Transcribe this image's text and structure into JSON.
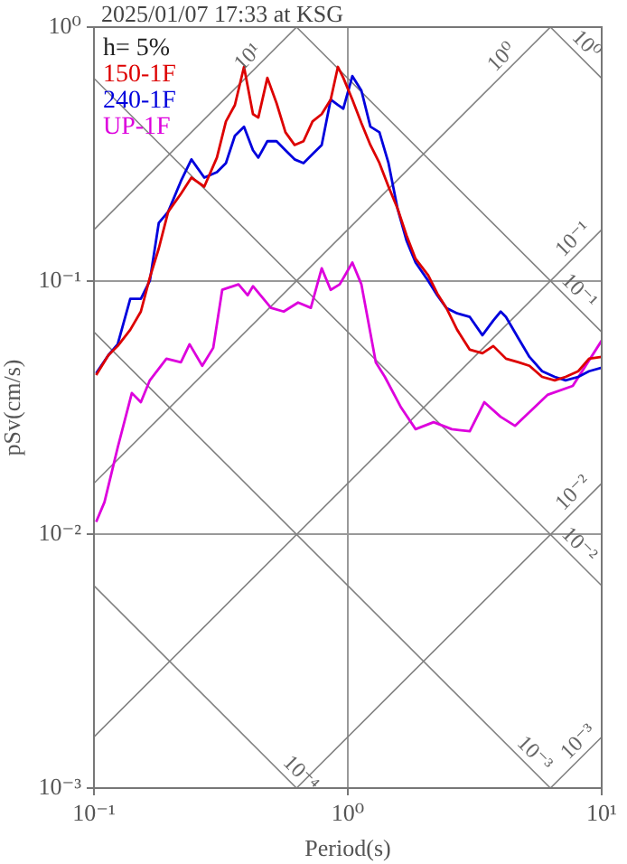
{
  "chart_data": {
    "type": "line",
    "title": "2025/01/07 17:33 at KSG",
    "xlabel": "Period(s)",
    "ylabel": "pSv(cm/s)",
    "log": "xy",
    "grid": true,
    "legend": "top left",
    "xlim": [
      0.1,
      10
    ],
    "ylim": [
      0.001,
      1
    ],
    "xticks": [
      {
        "value": 0.1,
        "label": "10⁻¹"
      },
      {
        "value": 1,
        "label": "10⁰"
      },
      {
        "value": 10,
        "label": "10¹"
      }
    ],
    "yticks": [
      {
        "value": 0.001,
        "label": "10⁻³"
      },
      {
        "value": 0.01,
        "label": "10⁻²"
      },
      {
        "value": 0.1,
        "label": "10⁻¹"
      },
      {
        "value": 1,
        "label": "10⁰"
      }
    ],
    "annotations": [
      "h= 5%",
      {
        "text": "10¹",
        "x": 0.44,
        "y": 0.7
      },
      {
        "text": "10⁰",
        "x": 4.4,
        "y": 0.7
      },
      {
        "text": "10⁰",
        "x": 8.0,
        "y": 0.785
      },
      {
        "text": "10⁻¹",
        "x": 8.4,
        "y": 0.134
      },
      {
        "text": "10⁻¹",
        "x": 7.5,
        "y": 0.0837
      },
      {
        "text": "10⁻²",
        "x": 8.4,
        "y": 0.0134
      },
      {
        "text": "10⁻²",
        "x": 7.5,
        "y": 0.00837
      },
      {
        "text": "10⁻³",
        "x": 8.8,
        "y": 0.0014
      },
      {
        "text": "10⁻³",
        "x": 5.0,
        "y": 0.001256
      },
      {
        "text": "10⁻⁴",
        "x": 0.6,
        "y": 0.00105
      }
    ],
    "series": [
      {
        "name": "150-1F",
        "color": "#dd0000",
        "x": [
          0.102,
          0.114,
          0.124,
          0.139,
          0.153,
          0.166,
          0.18,
          0.196,
          0.22,
          0.242,
          0.272,
          0.305,
          0.331,
          0.359,
          0.39,
          0.423,
          0.444,
          0.482,
          0.524,
          0.568,
          0.617,
          0.669,
          0.726,
          0.789,
          0.856,
          0.914,
          0.96,
          1.042,
          1.131,
          1.227,
          1.332,
          1.446,
          1.569,
          1.703,
          1.849,
          2.073,
          2.25,
          2.443,
          2.695,
          3.023,
          3.39,
          3.741,
          4.197,
          4.707,
          5.193,
          5.825,
          6.531,
          7.206,
          8.083,
          8.917,
          10
        ],
        "values": [
          0.0425,
          0.0509,
          0.0553,
          0.0641,
          0.0756,
          0.103,
          0.134,
          0.187,
          0.22,
          0.255,
          0.235,
          0.306,
          0.425,
          0.493,
          0.697,
          0.454,
          0.44,
          0.631,
          0.501,
          0.385,
          0.343,
          0.355,
          0.425,
          0.454,
          0.518,
          0.697,
          0.631,
          0.518,
          0.418,
          0.343,
          0.291,
          0.235,
          0.193,
          0.151,
          0.122,
          0.105,
          0.0891,
          0.0782,
          0.0641,
          0.0535,
          0.0518,
          0.0553,
          0.0493,
          0.0477,
          0.0462,
          0.0418,
          0.0405,
          0.0418,
          0.044,
          0.0493,
          0.0501
        ]
      },
      {
        "name": "240-1F",
        "color": "#0000dd",
        "x": [
          0.102,
          0.114,
          0.124,
          0.139,
          0.153,
          0.166,
          0.18,
          0.196,
          0.22,
          0.242,
          0.272,
          0.305,
          0.331,
          0.359,
          0.39,
          0.423,
          0.444,
          0.482,
          0.524,
          0.568,
          0.617,
          0.669,
          0.726,
          0.789,
          0.856,
          0.914,
          0.96,
          1.042,
          1.131,
          1.227,
          1.332,
          1.446,
          1.569,
          1.703,
          1.849,
          2.073,
          2.25,
          2.443,
          2.695,
          3.023,
          3.39,
          3.741,
          4.0,
          4.197,
          4.707,
          5.193,
          5.825,
          6.531,
          7.206,
          8.083,
          8.917,
          10
        ],
        "values": [
          0.0432,
          0.0509,
          0.0562,
          0.0849,
          0.0849,
          0.1,
          0.169,
          0.187,
          0.247,
          0.301,
          0.255,
          0.268,
          0.291,
          0.373,
          0.405,
          0.327,
          0.306,
          0.355,
          0.355,
          0.327,
          0.301,
          0.291,
          0.316,
          0.343,
          0.518,
          0.493,
          0.477,
          0.641,
          0.562,
          0.405,
          0.385,
          0.291,
          0.193,
          0.144,
          0.118,
          0.1,
          0.0877,
          0.0782,
          0.0744,
          0.072,
          0.061,
          0.0697,
          0.0756,
          0.072,
          0.0591,
          0.0501,
          0.044,
          0.0418,
          0.0405,
          0.0418,
          0.044,
          0.0454
        ]
      },
      {
        "name": "UP-1F",
        "color": "#dd00dd",
        "x": [
          0.102,
          0.11,
          0.124,
          0.141,
          0.153,
          0.166,
          0.193,
          0.22,
          0.238,
          0.267,
          0.295,
          0.32,
          0.371,
          0.403,
          0.423,
          0.498,
          0.559,
          0.637,
          0.715,
          0.789,
          0.856,
          0.929,
          1.042,
          1.131,
          1.289,
          1.399,
          1.622,
          1.849,
          2.178,
          2.567,
          3.023,
          3.447,
          3.995,
          4.554,
          6.116,
          7.692,
          10
        ],
        "values": [
          0.0112,
          0.0134,
          0.022,
          0.0361,
          0.0332,
          0.0405,
          0.0493,
          0.0477,
          0.0562,
          0.0462,
          0.0544,
          0.0921,
          0.0968,
          0.0877,
          0.0952,
          0.0782,
          0.0756,
          0.0821,
          0.0782,
          0.112,
          0.0921,
          0.0968,
          0.118,
          0.0968,
          0.0477,
          0.0418,
          0.0316,
          0.026,
          0.0277,
          0.026,
          0.0255,
          0.0332,
          0.0291,
          0.0268,
          0.0355,
          0.0385,
          0.0581
        ]
      },
      {
        "color": "#808080",
        "x": [
          0.1,
          0.628
        ],
        "values": [
          0.159,
          1
        ]
      },
      {
        "color": "#808080",
        "x": [
          0.1,
          6.28
        ],
        "values": [
          0.0159,
          1
        ]
      },
      {
        "color": "#808080",
        "x": [
          0.1,
          10
        ],
        "values": [
          0.00159,
          0.159
        ]
      },
      {
        "color": "#808080",
        "x": [
          0.628,
          10
        ],
        "values": [
          0.001,
          0.0159
        ]
      },
      {
        "color": "#808080",
        "x": [
          6.28,
          10
        ],
        "values": [
          0.001,
          0.00159
        ]
      },
      {
        "color": "#808080",
        "x": [
          6.28,
          10
        ],
        "values": [
          1,
          0.628
        ]
      },
      {
        "color": "#808080",
        "x": [
          0.628,
          10
        ],
        "values": [
          1,
          0.0628
        ]
      },
      {
        "color": "#808080",
        "x": [
          0.1,
          10
        ],
        "values": [
          0.628,
          0.00628
        ]
      },
      {
        "color": "#808080",
        "x": [
          0.1,
          6.28
        ],
        "values": [
          0.0628,
          0.001
        ]
      },
      {
        "color": "#808080",
        "x": [
          0.1,
          0.628
        ],
        "values": [
          0.00628,
          0.001
        ]
      }
    ]
  }
}
